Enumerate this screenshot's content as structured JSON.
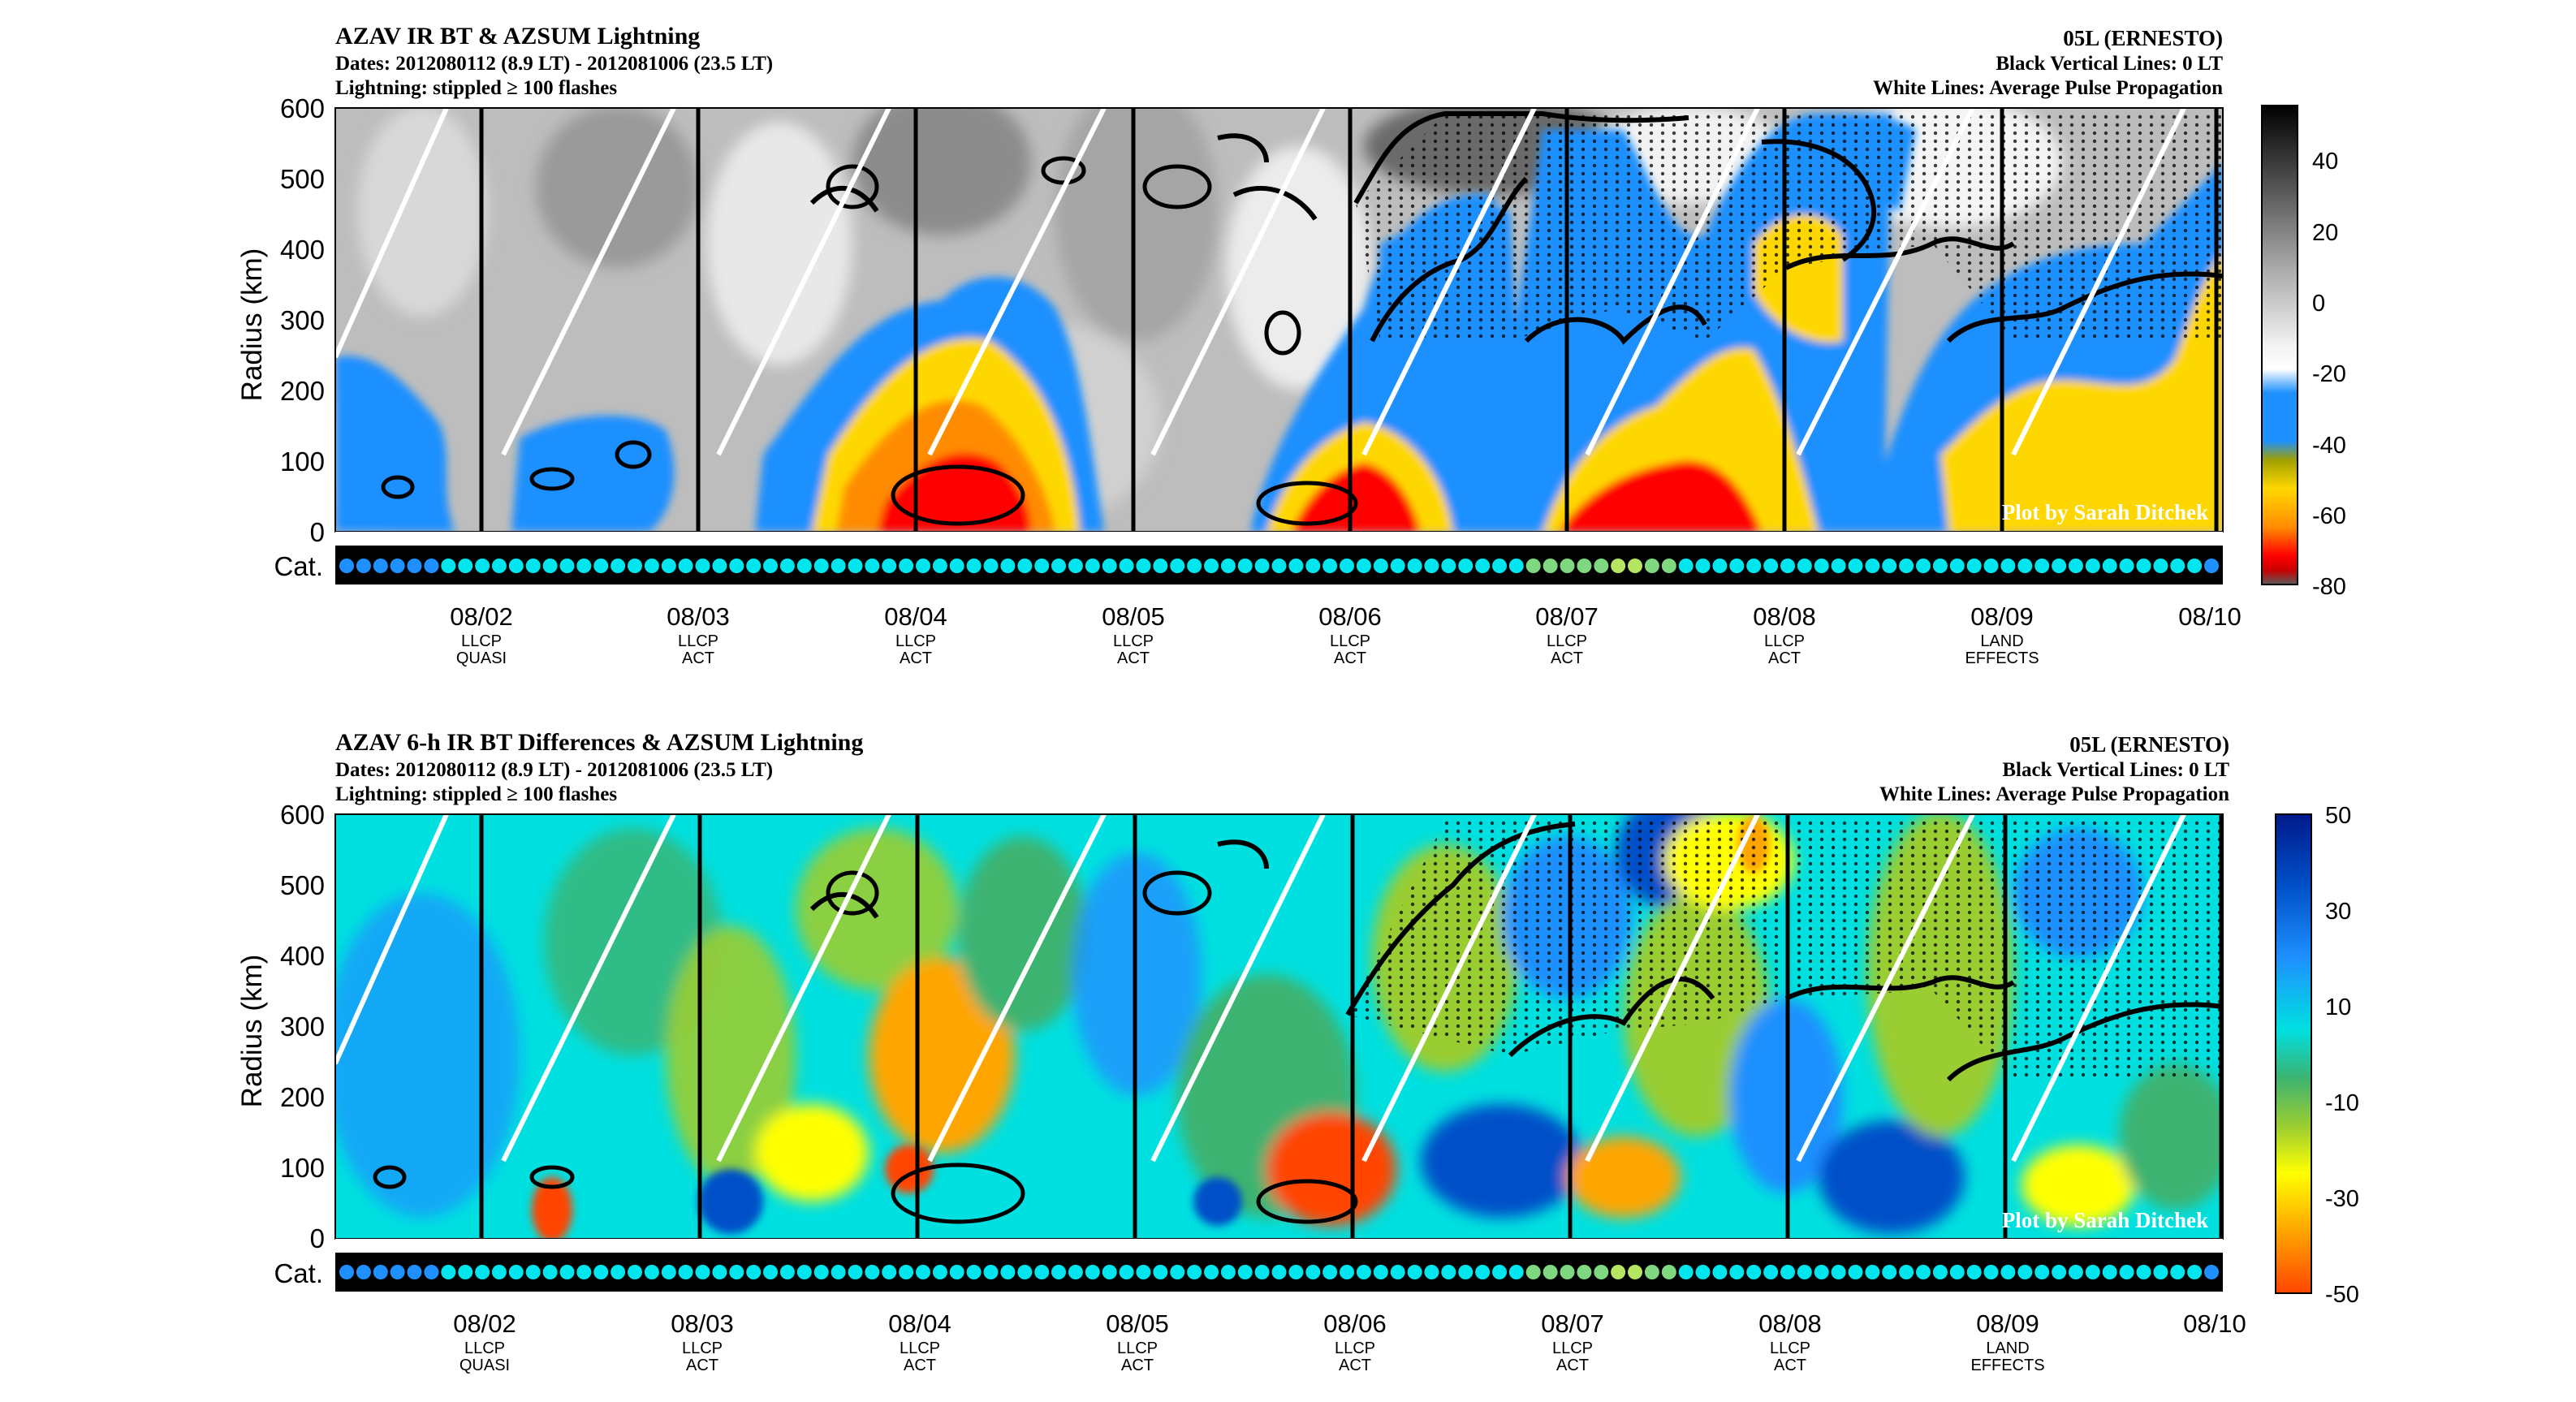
{
  "top_panel": {
    "title": "AZAV IR BT & AZSUM Lightning",
    "dates": "Dates: 2012080112 (8.9 LT) - 2012081006 (23.5 LT)",
    "lightning_note": "Lightning: stippled ≥ 100 flashes",
    "storm": "05L (ERNESTO)",
    "note_black": "Black Vertical Lines: 0 LT",
    "note_white": "White Lines: Average Pulse Propagation",
    "credit": "Plot by Sarah Ditchek"
  },
  "bottom_panel": {
    "title": "AZAV 6-h IR BT Differences & AZSUM Lightning",
    "dates": "Dates: 2012080112 (8.9 LT) - 2012081006 (23.5 LT)",
    "lightning_note": "Lightning: stippled ≥ 100 flashes",
    "storm": "05L (ERNESTO)",
    "note_black": "Black Vertical Lines: 0 LT",
    "note_white": "White Lines: Average Pulse Propagation",
    "credit": "Plot by Sarah Ditchek"
  },
  "chart_data": [
    {
      "type": "heatmap",
      "ylabel": "Radius (km)",
      "ylim": [
        0,
        600
      ],
      "yticks": [
        "600",
        "500",
        "400",
        "300",
        "200",
        "100",
        "0"
      ],
      "cat_label": "Cat.",
      "xticks": [
        {
          "date": "08/02",
          "label1": "LLCP",
          "label2": "QUASI"
        },
        {
          "date": "08/03",
          "label1": "LLCP",
          "label2": "ACT"
        },
        {
          "date": "08/04",
          "label1": "LLCP",
          "label2": "ACT"
        },
        {
          "date": "08/05",
          "label1": "LLCP",
          "label2": "ACT"
        },
        {
          "date": "08/06",
          "label1": "LLCP",
          "label2": "ACT"
        },
        {
          "date": "08/07",
          "label1": "LLCP",
          "label2": "ACT"
        },
        {
          "date": "08/08",
          "label1": "LLCP",
          "label2": "ACT"
        },
        {
          "date": "08/09",
          "label1": "LAND",
          "label2": "EFFECTS"
        },
        {
          "date": "08/10",
          "label1": "",
          "label2": ""
        }
      ],
      "colorbar_ticks": [
        "40",
        "20",
        "0",
        "-20",
        "-40",
        "-60",
        "-80"
      ],
      "colorbar_range": [
        -80,
        55
      ],
      "colormap": [
        "#5a5a5a",
        "#ff0000",
        "#ff8c00",
        "#ffd700",
        "#a0a000",
        "#1e90ff",
        "#ffffff",
        "#c8c8c8",
        "#808080",
        "#000000"
      ]
    },
    {
      "type": "heatmap",
      "ylabel": "Radius (km)",
      "ylim": [
        0,
        600
      ],
      "yticks": [
        "600",
        "500",
        "400",
        "300",
        "200",
        "100",
        "0"
      ],
      "cat_label": "Cat.",
      "xticks": [
        {
          "date": "08/02",
          "label1": "LLCP",
          "label2": "QUASI"
        },
        {
          "date": "08/03",
          "label1": "LLCP",
          "label2": "ACT"
        },
        {
          "date": "08/04",
          "label1": "LLCP",
          "label2": "ACT"
        },
        {
          "date": "08/05",
          "label1": "LLCP",
          "label2": "ACT"
        },
        {
          "date": "08/06",
          "label1": "LLCP",
          "label2": "ACT"
        },
        {
          "date": "08/07",
          "label1": "LLCP",
          "label2": "ACT"
        },
        {
          "date": "08/08",
          "label1": "LLCP",
          "label2": "ACT"
        },
        {
          "date": "08/09",
          "label1": "LAND",
          "label2": "EFFECTS"
        },
        {
          "date": "08/10",
          "label1": "",
          "label2": ""
        }
      ],
      "colorbar_ticks": [
        "50",
        "30",
        "10",
        "-10",
        "-30",
        "-50"
      ],
      "colorbar_range": [
        -50,
        50
      ],
      "colormap": [
        "#ff4500",
        "#ffa500",
        "#ffff00",
        "#9acd32",
        "#3cb371",
        "#00e0e0",
        "#1e90ff",
        "#0050c8",
        "#001a8c"
      ]
    }
  ],
  "category_markers": [
    "TD",
    "TD",
    "TD",
    "TD",
    "TD",
    "TD",
    "TS",
    "TS",
    "TS",
    "TS",
    "TS",
    "TS",
    "TS",
    "TS",
    "TS",
    "TS",
    "TS",
    "TS",
    "TS",
    "TS",
    "TS",
    "TS",
    "TS",
    "TS",
    "TS",
    "TS",
    "TS",
    "TS",
    "TS",
    "TS",
    "TS",
    "TS",
    "TS",
    "TS",
    "TS",
    "TS",
    "TS",
    "TS",
    "TS",
    "TS",
    "TS",
    "TS",
    "TS",
    "TS",
    "TS",
    "TS",
    "TS",
    "TS",
    "TS",
    "TS",
    "TS",
    "TS",
    "TS",
    "TS",
    "TS",
    "TS",
    "TS",
    "TS",
    "TS",
    "TS",
    "TS",
    "TS",
    "TS",
    "TS",
    "TS",
    "TS",
    "TS",
    "TS",
    "TS",
    "TS",
    "H1",
    "H1",
    "H1",
    "H1",
    "H1",
    "H2",
    "H2",
    "H1",
    "H1",
    "TS",
    "TS",
    "TS",
    "TS",
    "TS",
    "TS",
    "TS",
    "TS",
    "TS",
    "TS",
    "TS",
    "TS",
    "TS",
    "TS",
    "TS",
    "TS",
    "TS",
    "TS",
    "TS",
    "TS",
    "TS",
    "TS",
    "TS",
    "TS",
    "TS",
    "TS",
    "TS",
    "TS",
    "TS",
    "TS",
    "TS",
    "TD"
  ],
  "category_colors": {
    "TD": "#1e90ff",
    "TS": "#00e5ee",
    "H1": "#7fd77f",
    "H2": "#b5e561"
  }
}
